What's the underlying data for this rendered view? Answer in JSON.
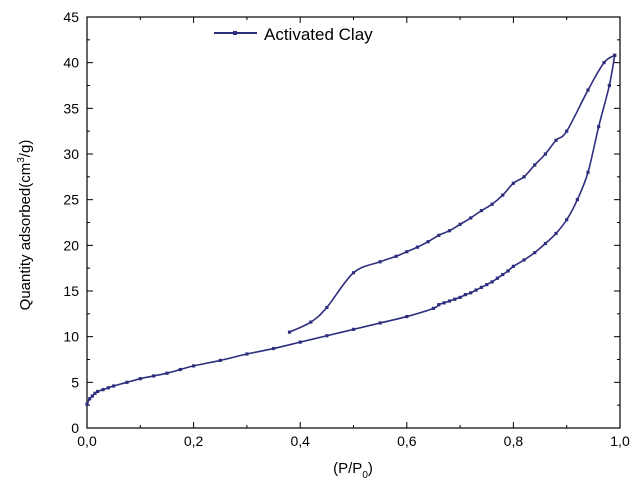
{
  "chart_data": {
    "type": "line",
    "xlabel_main": "(P/P",
    "xlabel_sub": "0",
    "xlabel_close": ")",
    "ylabel_main": "Quantity adsorbed(cm",
    "ylabel_sup": "3",
    "ylabel_rest": "/g)",
    "xlim": [
      0.0,
      1.0
    ],
    "ylim": [
      0,
      45
    ],
    "x_ticks": [
      "0,0",
      "0,2",
      "0,4",
      "0,6",
      "0,8",
      "1,0"
    ],
    "x_tick_values": [
      0.0,
      0.2,
      0.4,
      0.6,
      0.8,
      1.0
    ],
    "y_ticks": [
      "0",
      "5",
      "10",
      "15",
      "20",
      "25",
      "30",
      "35",
      "40",
      "45"
    ],
    "y_tick_values": [
      0,
      5,
      10,
      15,
      20,
      25,
      30,
      35,
      40,
      45
    ],
    "grid": false,
    "legend_position": "top-left",
    "color": "#2e2e7e",
    "series": [
      {
        "name": "Activated Clay",
        "branch": "adsorption",
        "x": [
          0.0,
          0.005,
          0.01,
          0.015,
          0.02,
          0.03,
          0.04,
          0.05,
          0.075,
          0.1,
          0.125,
          0.15,
          0.175,
          0.2,
          0.25,
          0.3,
          0.35,
          0.4,
          0.45,
          0.5,
          0.55,
          0.6,
          0.65,
          0.66,
          0.67,
          0.68,
          0.69,
          0.7,
          0.71,
          0.72,
          0.73,
          0.74,
          0.75,
          0.76,
          0.77,
          0.78,
          0.79,
          0.8,
          0.82,
          0.84,
          0.86,
          0.88,
          0.9,
          0.92,
          0.94,
          0.96,
          0.98,
          0.99
        ],
        "y": [
          2.6,
          3.2,
          3.5,
          3.8,
          4.0,
          4.2,
          4.4,
          4.6,
          5.0,
          5.4,
          5.7,
          6.0,
          6.4,
          6.8,
          7.4,
          8.1,
          8.7,
          9.4,
          10.1,
          10.8,
          11.5,
          12.2,
          13.1,
          13.5,
          13.7,
          13.9,
          14.1,
          14.3,
          14.6,
          14.8,
          15.1,
          15.4,
          15.7,
          16.0,
          16.4,
          16.8,
          17.2,
          17.7,
          18.4,
          19.2,
          20.2,
          21.3,
          22.8,
          25.0,
          28.0,
          33.0,
          37.5,
          40.8
        ]
      },
      {
        "name": "",
        "branch": "desorption",
        "x": [
          0.99,
          0.97,
          0.94,
          0.9,
          0.88,
          0.86,
          0.84,
          0.82,
          0.8,
          0.78,
          0.76,
          0.74,
          0.72,
          0.7,
          0.68,
          0.66,
          0.64,
          0.62,
          0.6,
          0.58,
          0.55,
          0.5,
          0.45,
          0.42,
          0.38
        ],
        "y": [
          40.8,
          40.0,
          37.0,
          32.5,
          31.5,
          30.0,
          28.8,
          27.5,
          26.8,
          25.5,
          24.5,
          23.8,
          23.0,
          22.3,
          21.6,
          21.1,
          20.4,
          19.8,
          19.3,
          18.8,
          18.2,
          17.0,
          13.2,
          11.6,
          10.5
        ]
      }
    ]
  }
}
